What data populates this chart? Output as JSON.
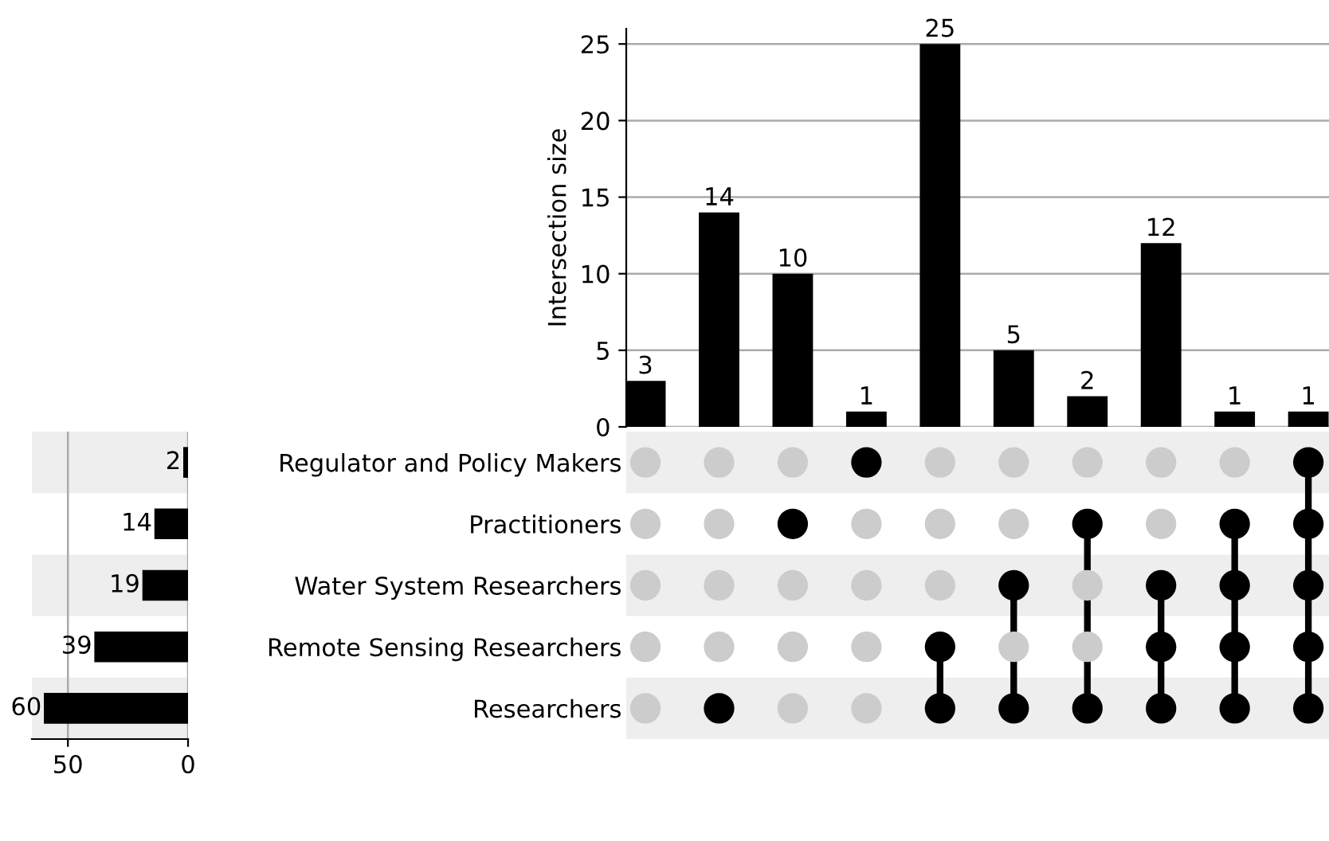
{
  "chart_data": [
    {
      "type": "bar",
      "categories": [
        null,
        null,
        null,
        null,
        null,
        null,
        null,
        null,
        null,
        null
      ],
      "values": [
        3,
        14,
        10,
        1,
        25,
        5,
        2,
        12,
        1,
        1
      ],
      "color": "#000000",
      "ylabel": "Intersection size",
      "ylim": [
        0,
        26
      ],
      "yticks": [
        0,
        5,
        10,
        15,
        20,
        25
      ],
      "grid": "y",
      "data_labels": true
    },
    {
      "type": "bar",
      "orientation": "horizontal",
      "categories": [
        null,
        null,
        null,
        null,
        null
      ],
      "values": [
        2,
        14,
        19,
        39,
        60
      ],
      "color": "#000000",
      "xlim": [
        65,
        0
      ],
      "xticks": [
        50,
        0
      ],
      "grid": "x",
      "data_labels": true,
      "tick_labels": "x"
    },
    {
      "type": "other",
      "y_categories": [
        "Regulator and Policy Makers",
        "Practitioners",
        "Water System Researchers",
        "Remote Sensing Researchers",
        "Researchers"
      ]
    }
  ]
}
